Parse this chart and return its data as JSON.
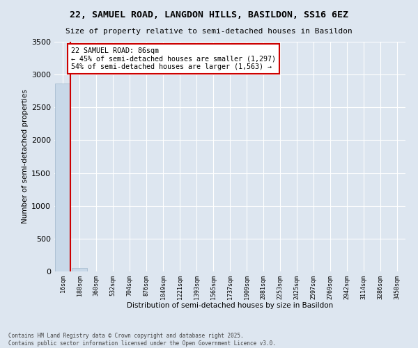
{
  "title_line1": "22, SAMUEL ROAD, LANGDON HILLS, BASILDON, SS16 6EZ",
  "title_line2": "Size of property relative to semi-detached houses in Basildon",
  "xlabel": "Distribution of semi-detached houses by size in Basildon",
  "ylabel": "Number of semi-detached properties",
  "bin_labels": [
    "16sqm",
    "188sqm",
    "360sqm",
    "532sqm",
    "704sqm",
    "876sqm",
    "1049sqm",
    "1221sqm",
    "1393sqm",
    "1565sqm",
    "1737sqm",
    "1909sqm",
    "2081sqm",
    "2253sqm",
    "2425sqm",
    "2597sqm",
    "2769sqm",
    "2942sqm",
    "3114sqm",
    "3286sqm",
    "3458sqm"
  ],
  "bar_heights": [
    2860,
    55,
    5,
    2,
    1,
    1,
    0,
    0,
    0,
    0,
    0,
    0,
    0,
    0,
    0,
    0,
    0,
    0,
    0,
    0,
    0
  ],
  "bar_color": "#c8d8e8",
  "bar_edge_color": "#a0b8cc",
  "property_label": "22 SAMUEL ROAD: 86sqm",
  "pct_smaller": 45,
  "count_smaller": 1297,
  "pct_larger": 54,
  "count_larger": 1563,
  "marker_color": "#cc0000",
  "annotation_box_color": "#cc0000",
  "ylim": [
    0,
    3500
  ],
  "yticks": [
    0,
    500,
    1000,
    1500,
    2000,
    2500,
    3000,
    3500
  ],
  "background_color": "#dde6f0",
  "plot_bg_color": "#dde6f0",
  "grid_color": "#ffffff",
  "footnote": "Contains HM Land Registry data © Crown copyright and database right 2025.\nContains public sector information licensed under the Open Government Licence v3.0."
}
